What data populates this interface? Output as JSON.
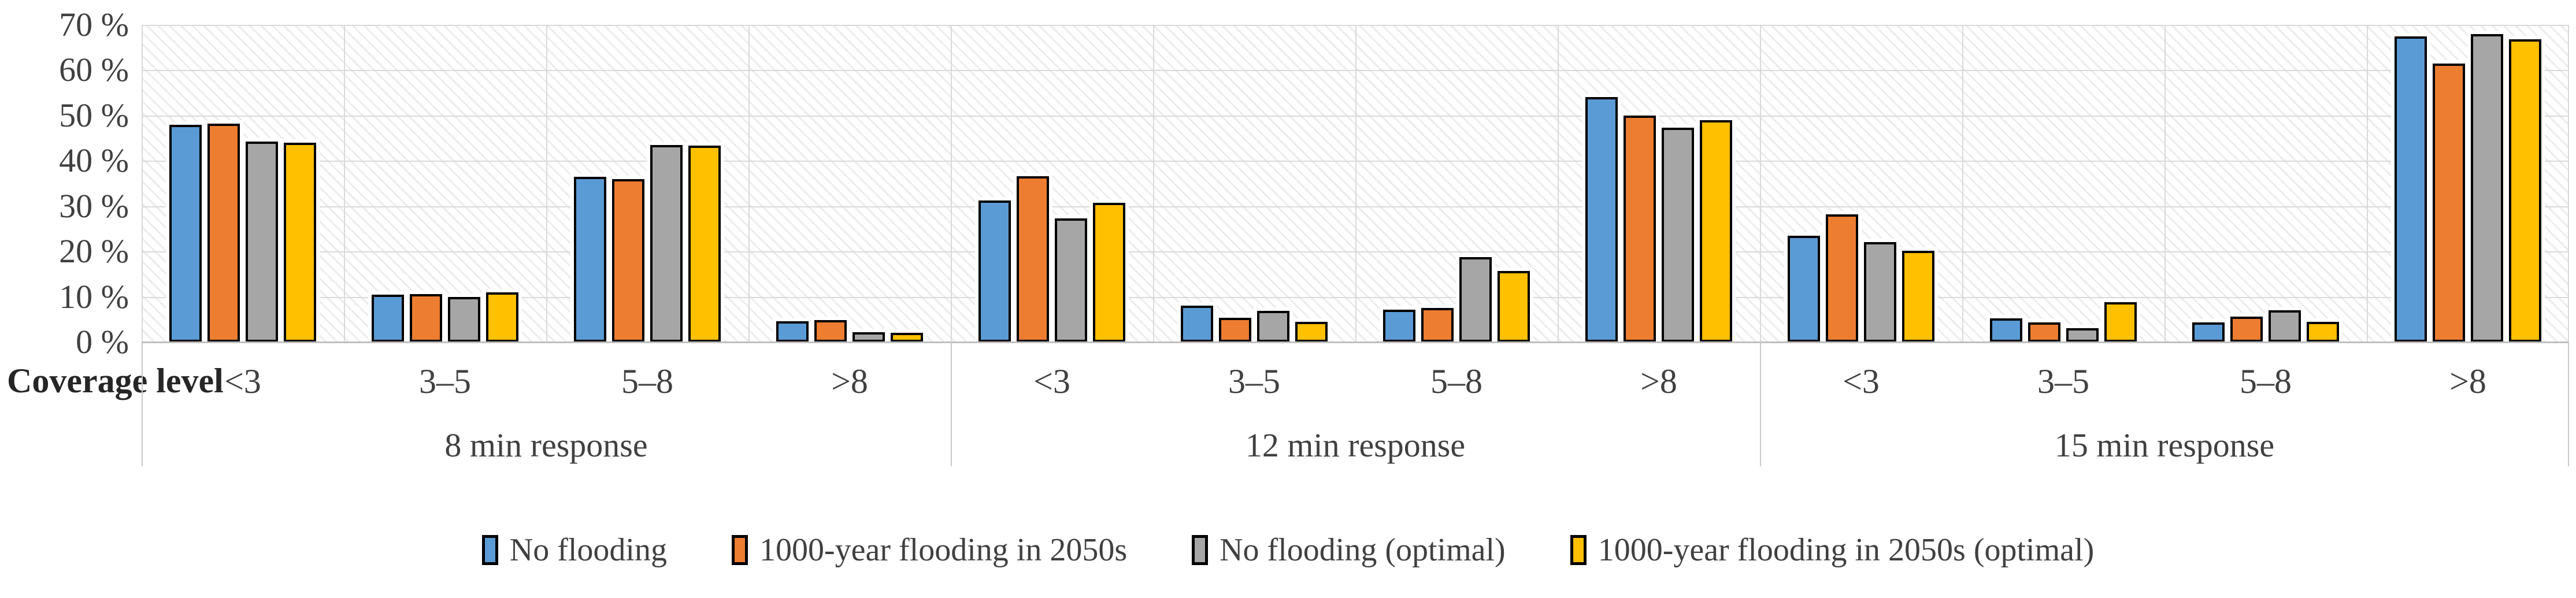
{
  "axis_title": "Coverage level",
  "chart_data": {
    "type": "bar",
    "title": "",
    "xlabel": "Coverage level",
    "ylabel": "",
    "ylim": [
      0,
      70
    ],
    "yticks": [
      0,
      10,
      20,
      30,
      40,
      50,
      60,
      70
    ],
    "ytick_suffix": " %",
    "grid": true,
    "legend_position": "bottom",
    "groups": [
      "8 min response",
      "12 min response",
      "15 min response"
    ],
    "categories": [
      "<3",
      "3–5",
      "5–8",
      ">8"
    ],
    "series": [
      {
        "name": "No flooding",
        "color": "#5B9BD5",
        "values": [
          [
            48.0,
            10.4,
            36.5,
            4.6
          ],
          [
            31.3,
            8.0,
            7.2,
            54.0
          ],
          [
            23.5,
            5.2,
            4.3,
            67.5
          ]
        ]
      },
      {
        "name": "1000-year flooding in 2050s",
        "color": "#ED7D31",
        "values": [
          [
            48.2,
            10.6,
            36.0,
            4.8
          ],
          [
            36.6,
            5.4,
            7.5,
            50.0
          ],
          [
            28.2,
            4.3,
            5.6,
            61.5
          ]
        ]
      },
      {
        "name": "No flooding (optimal)",
        "color": "#A6A6A6",
        "values": [
          [
            44.2,
            9.9,
            43.5,
            2.2
          ],
          [
            27.3,
            6.9,
            18.7,
            47.3
          ],
          [
            22.1,
            3.0,
            7.0,
            68.0
          ]
        ]
      },
      {
        "name": "1000-year flooding in 2050s (optimal)",
        "color": "#FFC000",
        "values": [
          [
            44.0,
            11.0,
            43.3,
            2.0
          ],
          [
            30.7,
            4.5,
            15.7,
            49.0
          ],
          [
            20.1,
            8.8,
            4.4,
            66.8
          ]
        ]
      }
    ]
  }
}
